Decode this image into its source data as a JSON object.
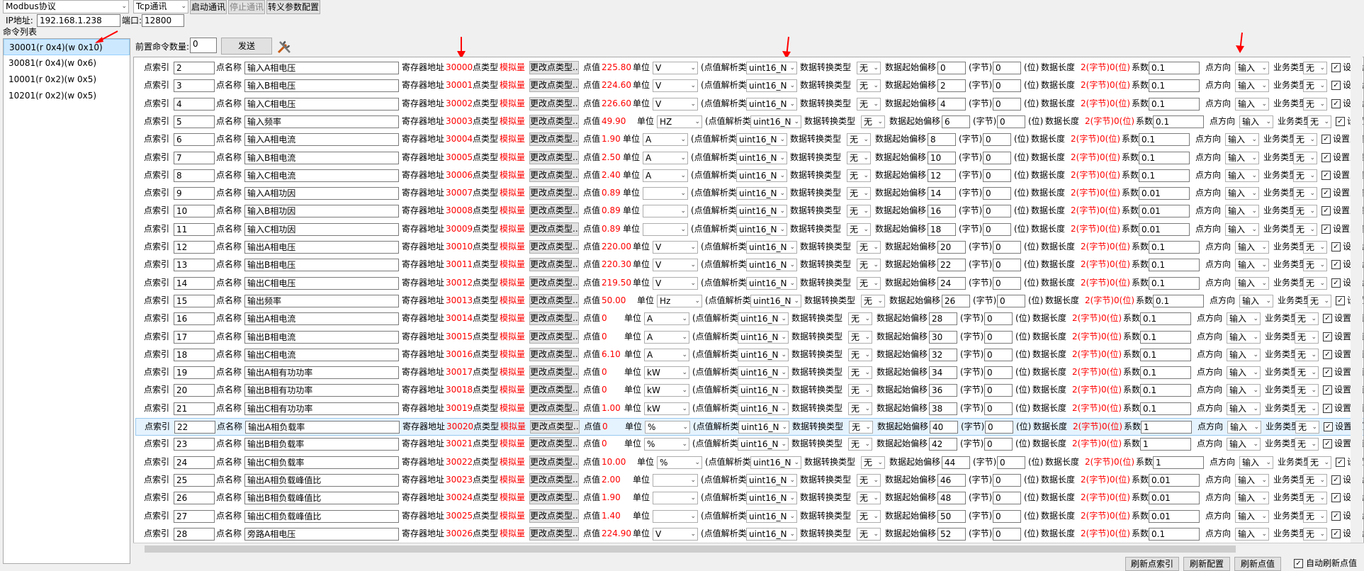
{
  "toolbar": {
    "protocol": "Modbus协议",
    "comm": "Tcp通讯",
    "start": "启动通讯",
    "stop": "停止通讯",
    "config": "转义参数配置"
  },
  "conn": {
    "ip_label": "IP地址:",
    "ip": "192.168.1.238",
    "port_label": "端口:",
    "port": "12800"
  },
  "cmdlist": {
    "title": "命令列表",
    "items": [
      "30001(r 0x4)(w 0x10)",
      "30081(r 0x4)(w 0x6)",
      "10001(r 0x2)(w 0x5)",
      "10201(r 0x2)(w 0x5)"
    ]
  },
  "prefix": {
    "label": "前置命令数量:",
    "value": "0",
    "send": "发送"
  },
  "labels": {
    "idx": "点索引",
    "name": "点名称",
    "reg": "寄存器地址",
    "type": "点类型",
    "analog": "模拟量",
    "change": "更改点类型...",
    "val": "点值",
    "unit": "单位",
    "parse": "(点值解析类型",
    "conv": "数据转换类型",
    "offset": "数据起始偏移",
    "byte": "(字节)",
    "bit": "(位)",
    "len": "数据长度",
    "lenval": "2(字节)0(位)",
    "coef": "系数",
    "dir": "点方向",
    "biz": "业务类型",
    "setval": "设置点值",
    "parse_type": "uint16_N",
    "none": "无",
    "input": "输入"
  },
  "rows": [
    {
      "idx": "2",
      "name": "输入A相电压",
      "reg": "30000",
      "val": "225.80",
      "unit": "V",
      "off": "0",
      "coef": "0.1"
    },
    {
      "idx": "3",
      "name": "输入B相电压",
      "reg": "30001",
      "val": "224.60",
      "unit": "V",
      "off": "2",
      "coef": "0.1"
    },
    {
      "idx": "4",
      "name": "输入C相电压",
      "reg": "30002",
      "val": "226.60",
      "unit": "V",
      "off": "4",
      "coef": "0.1"
    },
    {
      "idx": "5",
      "name": "输入频率",
      "reg": "30003",
      "val": "49.90",
      "unit": "HZ",
      "off": "6",
      "coef": "0.1"
    },
    {
      "idx": "6",
      "name": "输入A相电流",
      "reg": "30004",
      "val": "1.90",
      "unit": "A",
      "off": "8",
      "coef": "0.1"
    },
    {
      "idx": "7",
      "name": "输入B相电流",
      "reg": "30005",
      "val": "2.50",
      "unit": "A",
      "off": "10",
      "coef": "0.1"
    },
    {
      "idx": "8",
      "name": "输入C相电流",
      "reg": "30006",
      "val": "2.40",
      "unit": "A",
      "off": "12",
      "coef": "0.1"
    },
    {
      "idx": "9",
      "name": "输入A相功因",
      "reg": "30007",
      "val": "0.89",
      "unit": "",
      "off": "14",
      "coef": "0.01"
    },
    {
      "idx": "10",
      "name": "输入B相功因",
      "reg": "30008",
      "val": "0.89",
      "unit": "",
      "off": "16",
      "coef": "0.01"
    },
    {
      "idx": "11",
      "name": "输入C相功因",
      "reg": "30009",
      "val": "0.89",
      "unit": "",
      "off": "18",
      "coef": "0.01"
    },
    {
      "idx": "12",
      "name": "输出A相电压",
      "reg": "30010",
      "val": "220.00",
      "unit": "V",
      "off": "20",
      "coef": "0.1"
    },
    {
      "idx": "13",
      "name": "输出B相电压",
      "reg": "30011",
      "val": "220.30",
      "unit": "V",
      "off": "22",
      "coef": "0.1"
    },
    {
      "idx": "14",
      "name": "输出C相电压",
      "reg": "30012",
      "val": "219.50",
      "unit": "V",
      "off": "24",
      "coef": "0.1"
    },
    {
      "idx": "15",
      "name": "输出频率",
      "reg": "30013",
      "val": "50.00",
      "unit": "Hz",
      "off": "26",
      "coef": "0.1"
    },
    {
      "idx": "16",
      "name": "输出A相电流",
      "reg": "30014",
      "val": "0",
      "unit": "A",
      "off": "28",
      "coef": "0.1"
    },
    {
      "idx": "17",
      "name": "输出B相电流",
      "reg": "30015",
      "val": "0",
      "unit": "A",
      "off": "30",
      "coef": "0.1"
    },
    {
      "idx": "18",
      "name": "输出C相电流",
      "reg": "30016",
      "val": "6.10",
      "unit": "A",
      "off": "32",
      "coef": "0.1"
    },
    {
      "idx": "19",
      "name": "输出A相有功功率",
      "reg": "30017",
      "val": "0",
      "unit": "kW",
      "off": "34",
      "coef": "0.1"
    },
    {
      "idx": "20",
      "name": "输出B相有功功率",
      "reg": "30018",
      "val": "0",
      "unit": "kW",
      "off": "36",
      "coef": "0.1"
    },
    {
      "idx": "21",
      "name": "输出C相有功功率",
      "reg": "30019",
      "val": "1.00",
      "unit": "kW",
      "off": "38",
      "coef": "0.1"
    },
    {
      "idx": "22",
      "name": "输出A相负载率",
      "reg": "30020",
      "val": "0",
      "unit": "%",
      "off": "40",
      "coef": "1"
    },
    {
      "idx": "23",
      "name": "输出B相负载率",
      "reg": "30021",
      "val": "0",
      "unit": "%",
      "off": "42",
      "coef": "1"
    },
    {
      "idx": "24",
      "name": "输出C相负载率",
      "reg": "30022",
      "val": "10.00",
      "unit": "%",
      "off": "44",
      "coef": "1"
    },
    {
      "idx": "25",
      "name": "输出A相负载峰值比",
      "reg": "30023",
      "val": "2.00",
      "unit": "",
      "off": "46",
      "coef": "0.01"
    },
    {
      "idx": "26",
      "name": "输出B相负载峰值比",
      "reg": "30024",
      "val": "1.90",
      "unit": "",
      "off": "48",
      "coef": "0.01"
    },
    {
      "idx": "27",
      "name": "输出C相负载峰值比",
      "reg": "30025",
      "val": "1.40",
      "unit": "",
      "off": "50",
      "coef": "0.01"
    },
    {
      "idx": "28",
      "name": "旁路A相电压",
      "reg": "30026",
      "val": "224.90",
      "unit": "V",
      "off": "52",
      "coef": "0.1"
    }
  ],
  "bottom": {
    "refresh_idx": "刷新点索引",
    "refresh_cfg": "刷新配置",
    "refresh_val": "刷新点值",
    "auto": "自动刷新点值"
  },
  "colors": {
    "accent": "#ff0000",
    "selection": "#cce8ff"
  }
}
